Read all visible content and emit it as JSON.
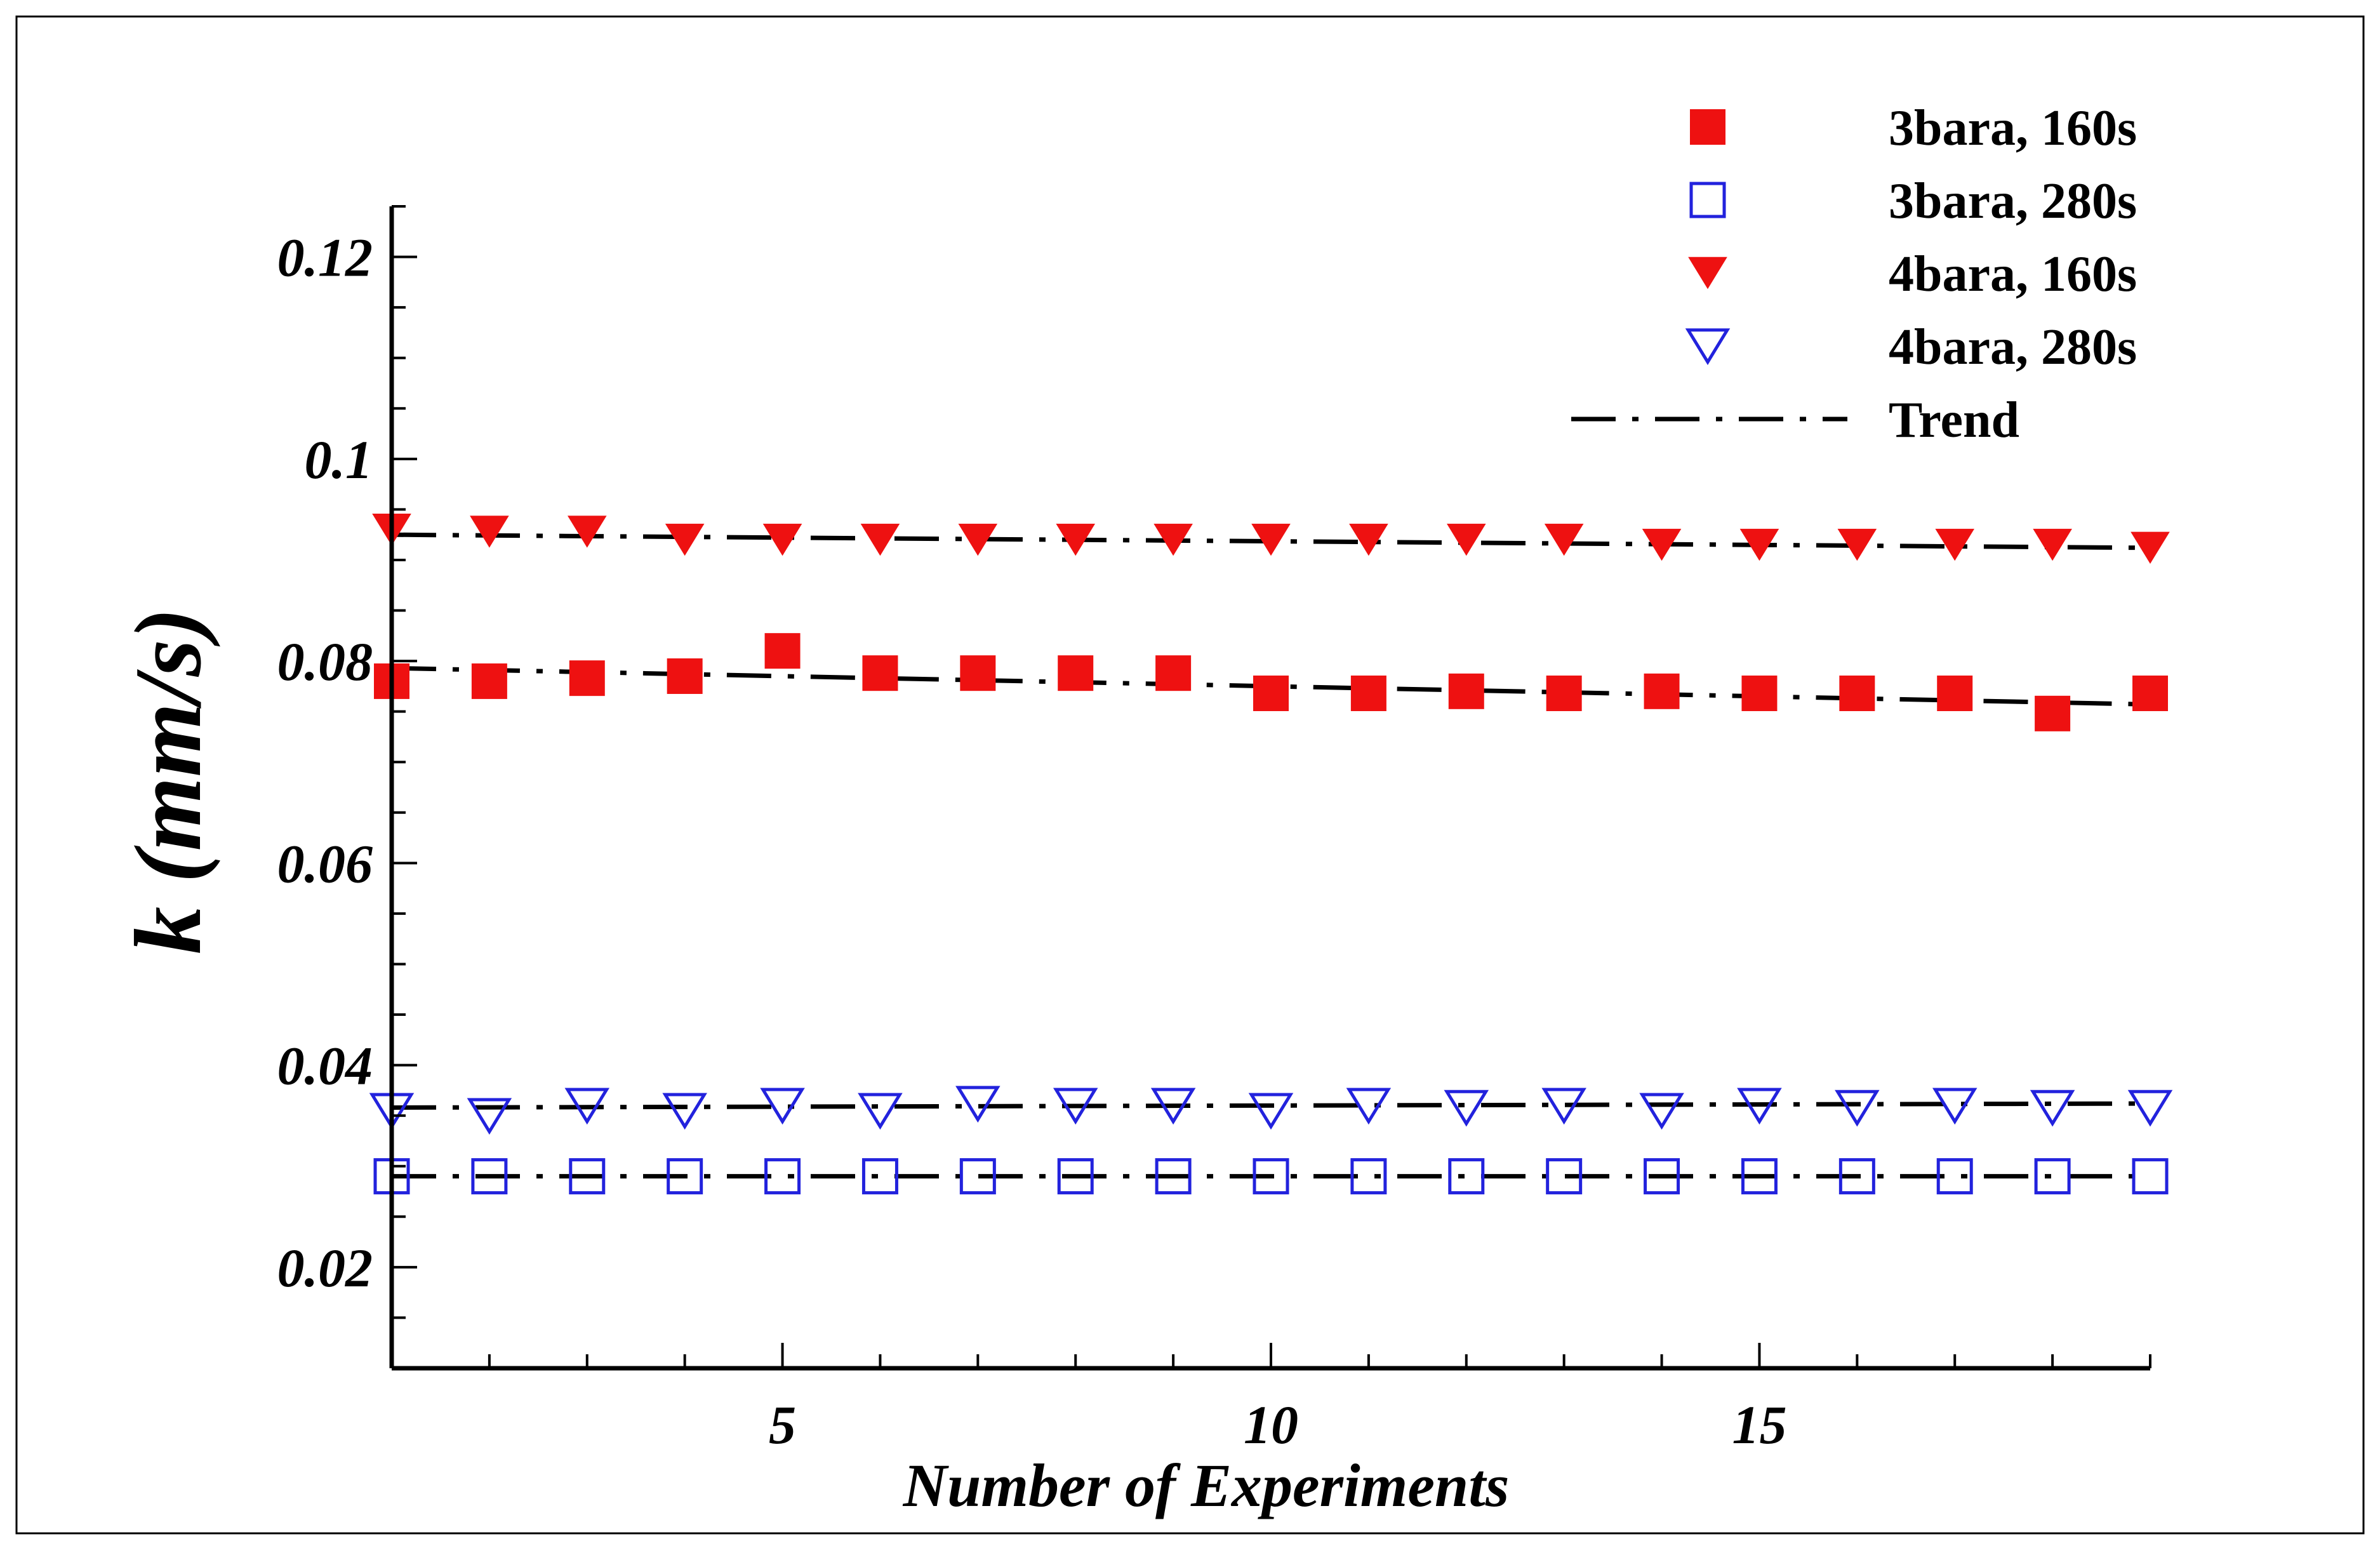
{
  "chart_data": {
    "type": "scatter",
    "title": "",
    "xlabel": "Number of Experiments",
    "ylabel": "k (mm/s)",
    "xlim": [
      1,
      19
    ],
    "ylim": [
      0.01,
      0.125
    ],
    "x_ticks": [
      5,
      10,
      15
    ],
    "x_tick_labels": [
      "5",
      "10",
      "15"
    ],
    "y_ticks": [
      0.02,
      0.04,
      0.06,
      0.08,
      0.1,
      0.12
    ],
    "y_tick_labels": [
      "0.02",
      "0.04",
      "0.06",
      "0.08",
      "0.1",
      "0.12"
    ],
    "grid": false,
    "legend_position": "top-right",
    "x": [
      1,
      2,
      3,
      4,
      5,
      6,
      7,
      8,
      9,
      10,
      11,
      12,
      13,
      14,
      15,
      16,
      17,
      18,
      19
    ],
    "series": [
      {
        "name": "3bara, 160s",
        "marker": "square-filled",
        "color": "#ee1111",
        "values": [
          0.078,
          0.078,
          0.0783,
          0.0785,
          0.081,
          0.0788,
          0.0788,
          0.0788,
          0.0788,
          0.0768,
          0.0768,
          0.077,
          0.0768,
          0.077,
          0.0768,
          0.0768,
          0.0768,
          0.0748,
          0.0768
        ]
      },
      {
        "name": "3bara, 280s",
        "marker": "square-open",
        "color": "#2222dd",
        "values": [
          0.029,
          0.029,
          0.029,
          0.029,
          0.029,
          0.029,
          0.029,
          0.029,
          0.029,
          0.029,
          0.029,
          0.029,
          0.029,
          0.029,
          0.029,
          0.029,
          0.029,
          0.029,
          0.029
        ]
      },
      {
        "name": "4bara, 160s",
        "marker": "triangle-down-filled",
        "color": "#ee1111",
        "values": [
          0.093,
          0.0928,
          0.0928,
          0.092,
          0.092,
          0.092,
          0.092,
          0.092,
          0.092,
          0.092,
          0.092,
          0.092,
          0.092,
          0.0915,
          0.0915,
          0.0915,
          0.0915,
          0.0915,
          0.0912
        ]
      },
      {
        "name": "4bara, 280s",
        "marker": "triangle-down-open",
        "color": "#2222dd",
        "values": [
          0.0355,
          0.035,
          0.036,
          0.0355,
          0.036,
          0.0355,
          0.0362,
          0.036,
          0.036,
          0.0355,
          0.036,
          0.0358,
          0.036,
          0.0355,
          0.036,
          0.0358,
          0.036,
          0.0358,
          0.0358
        ]
      }
    ],
    "trend_lines": [
      {
        "name": "Trend",
        "for_series": "3bara, 160s",
        "x": [
          1,
          19
        ],
        "values": [
          0.0793,
          0.0757
        ]
      },
      {
        "name": "Trend",
        "for_series": "3bara, 280s",
        "x": [
          1,
          19
        ],
        "values": [
          0.029,
          0.029
        ]
      },
      {
        "name": "Trend",
        "for_series": "4bara, 160s",
        "x": [
          1,
          19
        ],
        "values": [
          0.0925,
          0.0912
        ]
      },
      {
        "name": "Trend",
        "for_series": "4bara, 280s",
        "x": [
          1,
          19
        ],
        "values": [
          0.0358,
          0.0362
        ]
      }
    ],
    "legend": [
      {
        "label": "3bara, 160s",
        "marker": "square-filled",
        "color": "#ee1111"
      },
      {
        "label": "3bara, 280s",
        "marker": "square-open",
        "color": "#2222dd"
      },
      {
        "label": "4bara, 160s",
        "marker": "triangle-down-filled",
        "color": "#ee1111"
      },
      {
        "label": "4bara, 280s",
        "marker": "triangle-down-open",
        "color": "#2222dd"
      },
      {
        "label": "Trend",
        "marker": "dash-dot-line",
        "color": "#000000"
      }
    ]
  }
}
